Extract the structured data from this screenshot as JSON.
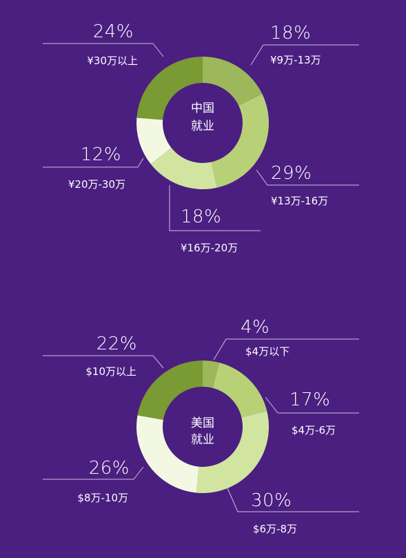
{
  "chart_data": [
    {
      "type": "pie",
      "center_label": [
        "中国",
        "就业"
      ],
      "slices": [
        {
          "percent": 18,
          "percent_label": "18%",
          "range": "¥9万-13万",
          "color": "#9cb85a"
        },
        {
          "percent": 29,
          "percent_label": "29%",
          "range": "¥13万-16万",
          "color": "#b8d177"
        },
        {
          "percent": 18,
          "percent_label": "18%",
          "range": "¥16万-20万",
          "color": "#d2e5a0"
        },
        {
          "percent": 12,
          "percent_label": "12%",
          "range": "¥20万-30万",
          "color": "#f3f8e3"
        },
        {
          "percent": 24,
          "percent_label": "24%",
          "range": "¥30万以上",
          "color": "#7a9a34"
        }
      ]
    },
    {
      "type": "pie",
      "center_label": [
        "美国",
        "就业"
      ],
      "slices": [
        {
          "percent": 4,
          "percent_label": "4%",
          "range": "$4万以下",
          "color": "#9cb85a"
        },
        {
          "percent": 17,
          "percent_label": "17%",
          "range": "$4万-6万",
          "color": "#b8d177"
        },
        {
          "percent": 30,
          "percent_label": "30%",
          "range": "$6万-8万",
          "color": "#d2e5a0"
        },
        {
          "percent": 26,
          "percent_label": "26%",
          "range": "$8万-10万",
          "color": "#f3f8e3"
        },
        {
          "percent": 22,
          "percent_label": "22%",
          "range": "$10万以上",
          "color": "#7a9a34"
        }
      ]
    }
  ]
}
